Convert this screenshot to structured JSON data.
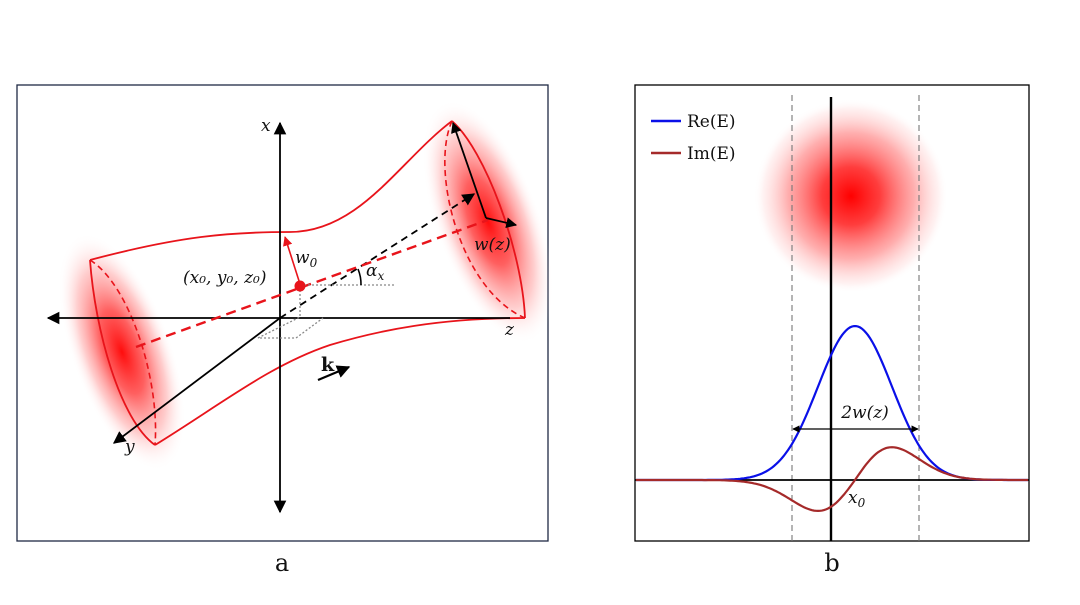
{
  "panel_a": {
    "letter": "a",
    "axis_x": "x",
    "axis_y": "y",
    "axis_z": "z",
    "waist_label": "w",
    "waist_sub": "0",
    "center_label": "(x₀, y₀, z₀)",
    "angle_label": "α",
    "angle_sub": "x",
    "width_label": "w(z)",
    "k_label": "k",
    "beam_color": "#e8141b"
  },
  "panel_b": {
    "letter": "b",
    "legend": [
      {
        "label": "Re(E)",
        "color": "#0a10e8"
      },
      {
        "label": "Im(E)",
        "color": "#a52a2a"
      }
    ],
    "width_label": "2w(z)",
    "x0_label": "x",
    "x0_sub": "0"
  }
}
